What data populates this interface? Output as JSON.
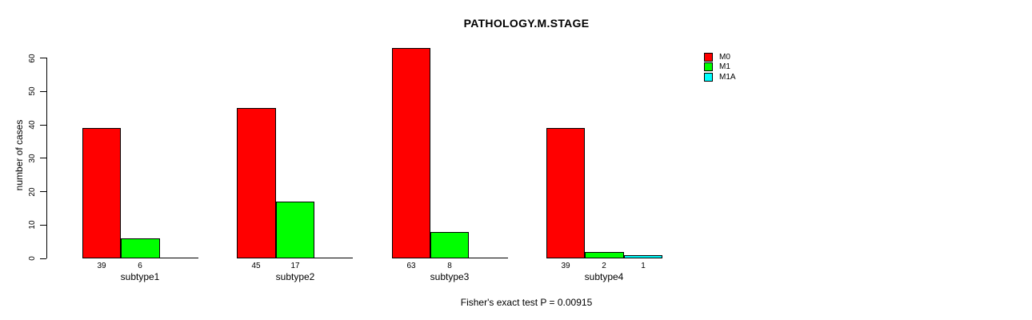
{
  "title": "PATHOLOGY.M.STAGE",
  "caption": "Fisher's exact test P = 0.00915",
  "y_axis": {
    "label": "number of cases",
    "ticks": [
      0,
      10,
      20,
      30,
      40,
      50,
      60
    ]
  },
  "legend": {
    "position": "top-right",
    "entries": [
      {
        "label": "M0",
        "color": "#FF0000"
      },
      {
        "label": "M1",
        "color": "#00FF00"
      },
      {
        "label": "M1A",
        "color": "#00FFFF"
      }
    ]
  },
  "chart_data": {
    "type": "bar",
    "title": "PATHOLOGY.M.STAGE",
    "xlabel": "",
    "ylabel": "number of cases",
    "ylim": [
      0,
      60
    ],
    "grid": false,
    "legend_position": "top-right",
    "categories": [
      "subtype1",
      "subtype2",
      "subtype3",
      "subtype4"
    ],
    "series": [
      {
        "name": "M0",
        "color": "#FF0000",
        "values": [
          39,
          45,
          63,
          39
        ]
      },
      {
        "name": "M1",
        "color": "#00FF00",
        "values": [
          6,
          17,
          8,
          2
        ]
      },
      {
        "name": "M1A",
        "color": "#00FFFF",
        "values": [
          0,
          0,
          0,
          1
        ]
      }
    ],
    "value_labels_shown_for_nonzero_bars": true,
    "annotation": "Fisher's exact test P = 0.00915"
  }
}
